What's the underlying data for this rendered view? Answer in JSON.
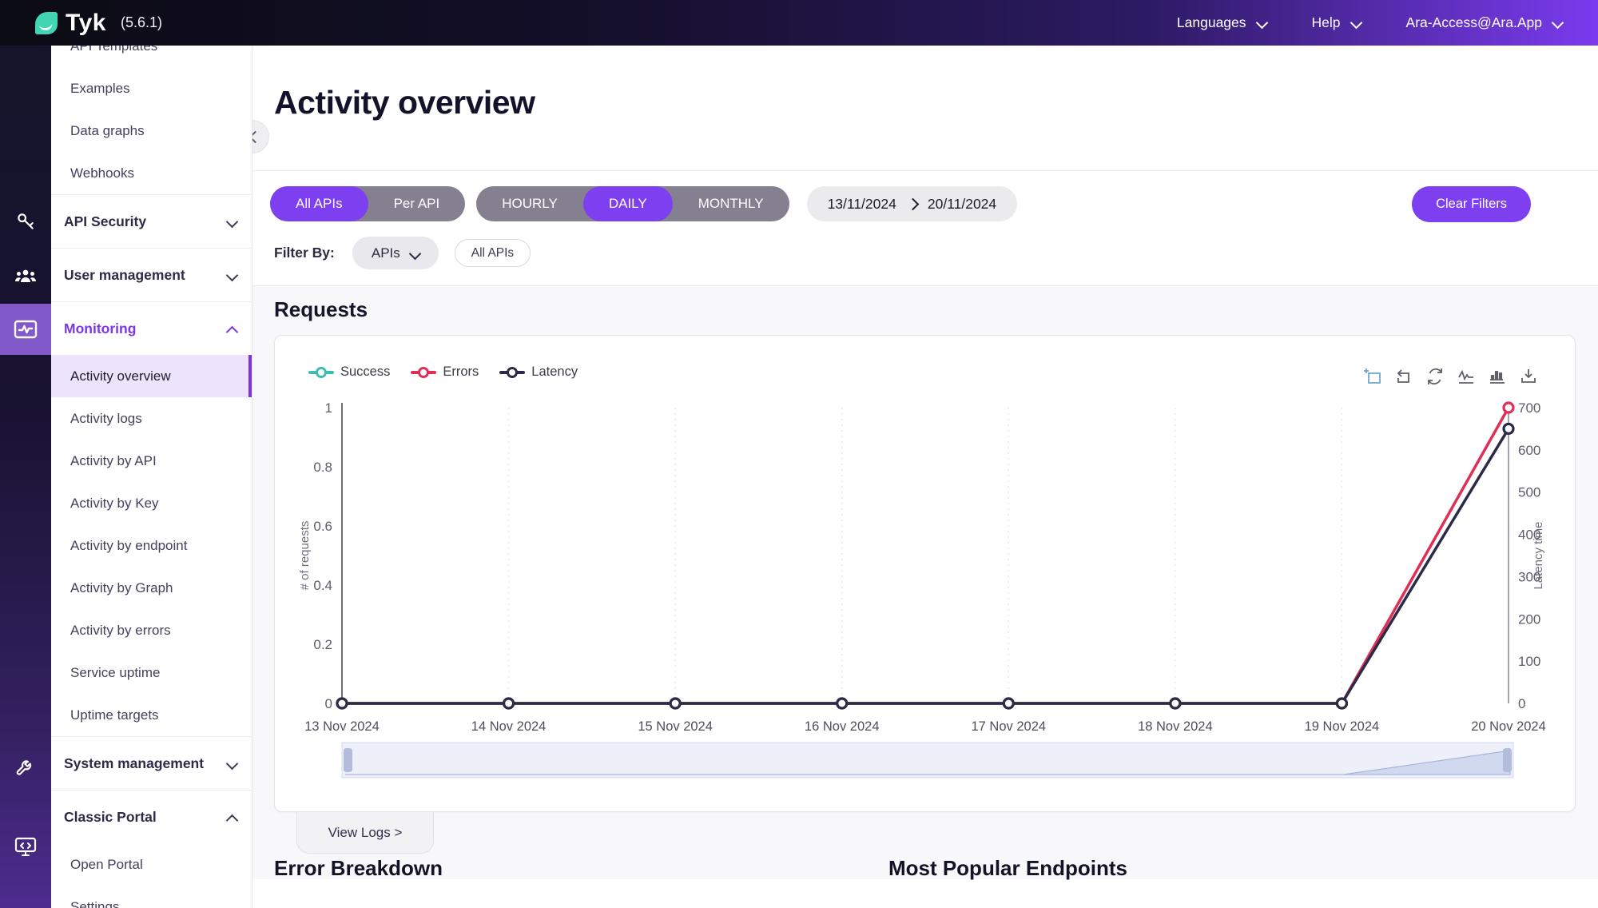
{
  "header": {
    "logo_text": "Tyk",
    "version": "(5.6.1)",
    "menu": [
      {
        "label": "Languages"
      },
      {
        "label": "Help"
      },
      {
        "label": "Ara-Access@Ara.App"
      }
    ]
  },
  "sidebar": {
    "items": [
      {
        "label": "API Templates",
        "kind": "child"
      },
      {
        "label": "Examples",
        "kind": "child"
      },
      {
        "label": "Data graphs",
        "kind": "child"
      },
      {
        "label": "Webhooks",
        "kind": "child"
      },
      {
        "label": "API Security",
        "kind": "parent",
        "chevron": "down"
      },
      {
        "label": "User management",
        "kind": "parent",
        "chevron": "down"
      },
      {
        "label": "Monitoring",
        "kind": "parent",
        "chevron": "up",
        "accent": true
      },
      {
        "label": "Activity overview",
        "kind": "child",
        "selected": true
      },
      {
        "label": "Activity logs",
        "kind": "child"
      },
      {
        "label": "Activity by API",
        "kind": "child"
      },
      {
        "label": "Activity by Key",
        "kind": "child"
      },
      {
        "label": "Activity by endpoint",
        "kind": "child"
      },
      {
        "label": "Activity by Graph",
        "kind": "child"
      },
      {
        "label": "Activity by errors",
        "kind": "child"
      },
      {
        "label": "Service uptime",
        "kind": "child"
      },
      {
        "label": "Uptime targets",
        "kind": "child"
      },
      {
        "label": "System management",
        "kind": "parent",
        "chevron": "down"
      },
      {
        "label": "Classic Portal",
        "kind": "parent",
        "chevron": "up"
      },
      {
        "label": "Open Portal",
        "kind": "child"
      },
      {
        "label": "Settings",
        "kind": "child"
      }
    ],
    "icon_rail": [
      "key-icon",
      "users-icon",
      "monitor-pulse-icon",
      "wrench-icon",
      "monitor-code-icon"
    ]
  },
  "page": {
    "title": "Activity overview",
    "scope_toggle": {
      "options": [
        "All APIs",
        "Per API"
      ],
      "selected": "All APIs"
    },
    "granularity_toggle": {
      "options": [
        "HOURLY",
        "DAILY",
        "MONTHLY"
      ],
      "selected": "DAILY"
    },
    "date_range": {
      "from": "13/11/2024",
      "to": "20/11/2024"
    },
    "clear_filters_label": "Clear Filters",
    "filter_by_label": "Filter By:",
    "filter_type_selected": "APIs",
    "filter_value_selected": "All APIs",
    "requests_heading": "Requests",
    "view_logs_label": "View Logs >",
    "error_breakdown_heading": "Error Breakdown",
    "popular_endpoints_heading": "Most Popular Endpoints"
  },
  "chart_data": {
    "type": "line",
    "title": "Requests",
    "categories": [
      "13 Nov 2024",
      "14 Nov 2024",
      "15 Nov 2024",
      "16 Nov 2024",
      "17 Nov 2024",
      "18 Nov 2024",
      "19 Nov 2024",
      "20 Nov 2024"
    ],
    "series": [
      {
        "name": "Success",
        "color": "#3fbcae",
        "axis": "left",
        "values": [
          0,
          0,
          0,
          0,
          0,
          0,
          0,
          null
        ]
      },
      {
        "name": "Errors",
        "color": "#e02e56",
        "axis": "left",
        "values": [
          0,
          0,
          0,
          0,
          0,
          0,
          0,
          1
        ]
      },
      {
        "name": "Latency",
        "color": "#2b2b47",
        "axis": "right",
        "values": [
          0,
          0,
          0,
          0,
          0,
          0,
          0,
          650
        ]
      }
    ],
    "left_axis": {
      "label": "# of requests",
      "ticks": [
        0,
        0.2,
        0.4,
        0.6,
        0.8,
        1
      ],
      "min": 0,
      "max": 1
    },
    "right_axis": {
      "label": "Latency time",
      "ticks": [
        0,
        100,
        200,
        300,
        400,
        500,
        600,
        700
      ],
      "min": 0,
      "max": 700
    },
    "legend": [
      "Success",
      "Errors",
      "Latency"
    ],
    "legend_position": "top-left",
    "grid": "vertical-dashed",
    "toolbox": [
      "zoom-select",
      "zoom-reset",
      "restore",
      "line-chart-view",
      "bar-chart-view",
      "save-image"
    ],
    "datazoom": {
      "window_start": "13 Nov 2024",
      "window_end": "20 Nov 2024"
    },
    "colors": {
      "accent_purple": "#7d3ff0",
      "axis_label": "#5c5c6b",
      "grid_line": "#e9e9f0"
    }
  }
}
